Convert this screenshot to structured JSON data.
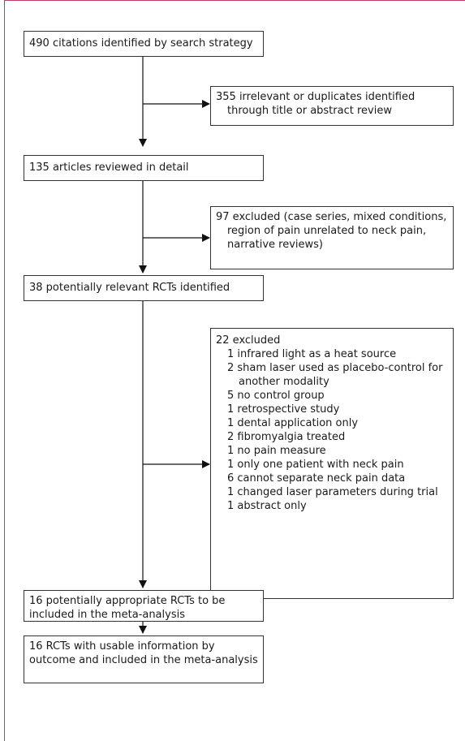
{
  "flow": {
    "step1": "490 citations identified by search strategy",
    "excl1": "355 irrelevant or duplicates identified through title or abstract review",
    "step2": "135 articles reviewed in detail",
    "excl2": "97 excluded (case series, mixed conditions, region of pain unrelated to neck pain, narrative reviews)",
    "step3": "38 potentially relevant RCTs identified",
    "excl3_title": "22 excluded",
    "excl3_items": [
      "1 infrared light as a heat source",
      "2 sham laser used as placebo-control for another modality",
      "5 no control group",
      "1 retrospective study",
      "1 dental application only",
      "2 fibromyalgia treated",
      "1 no pain measure",
      "1 only one patient with neck pain",
      "6 cannot separate neck pain data",
      "1 changed laser parameters during trial",
      "1 abstract only"
    ],
    "step4": "16 potentially appropriate RCTs to be included in the meta-analysis",
    "step5": "16 RCTs with usable information by outcome and included in the meta-analysis"
  }
}
